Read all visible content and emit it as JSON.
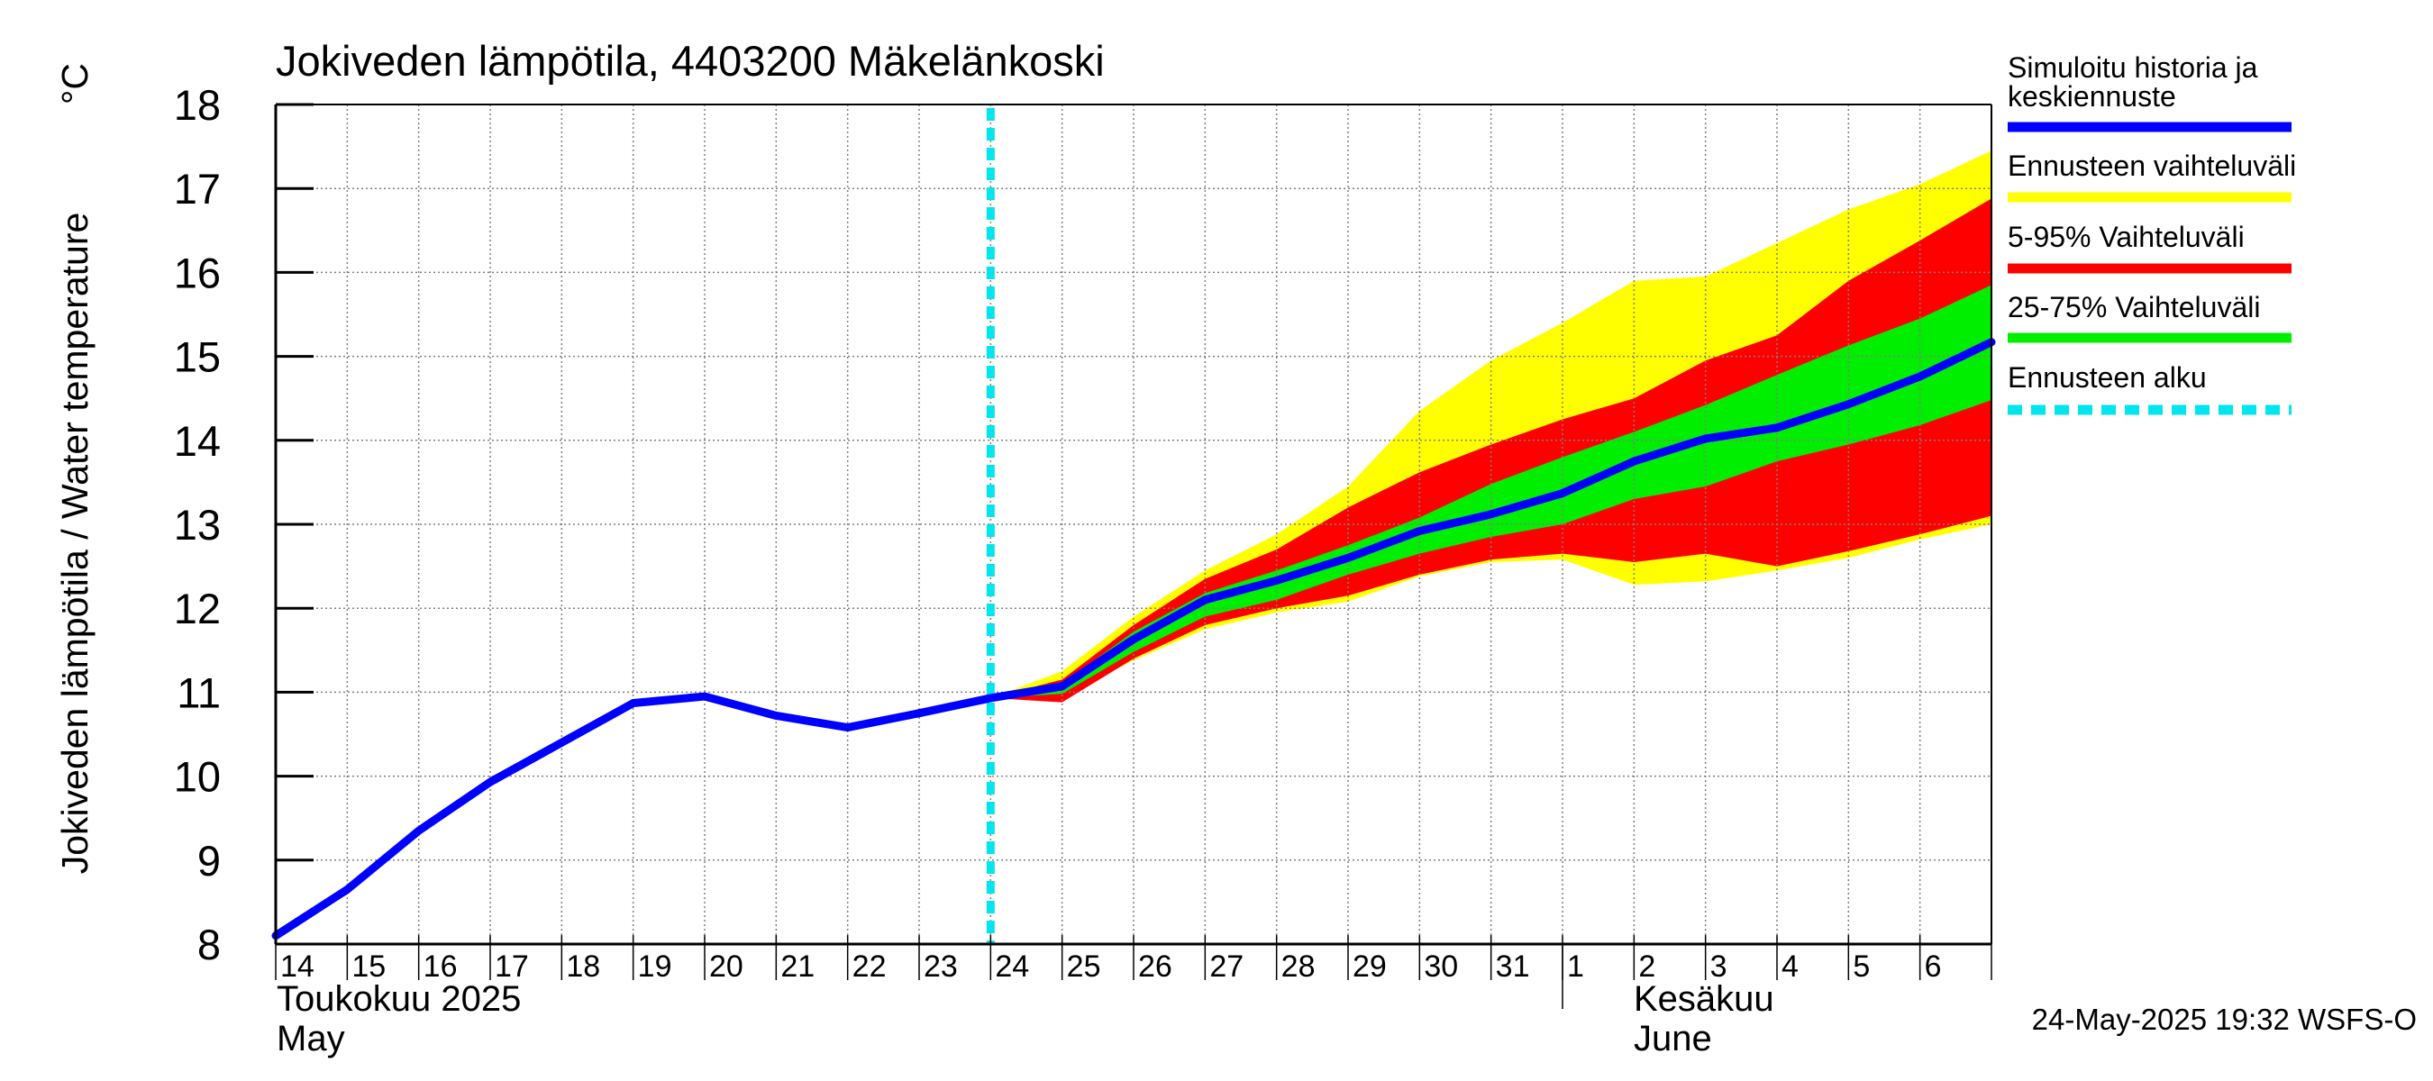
{
  "title": "Jokiveden lämpötila, 4403200 Mäkelänkoski",
  "ylabel": "Jokiveden lämpötila / Water temperature",
  "unit": "°C",
  "timestamp": "24-May-2025 19:32 WSFS-O",
  "month_labels": {
    "may_fi": "Toukokuu  2025",
    "may_en": "May",
    "june_fi": "Kesäkuu",
    "june_en": "June"
  },
  "legend": [
    {
      "label_lines": [
        "Simuloitu historia ja",
        "keskiennuste"
      ],
      "color": "#0000ff",
      "style": "solid"
    },
    {
      "label_lines": [
        "Ennusteen vaihteluväli"
      ],
      "color": "#ffff00",
      "style": "solid"
    },
    {
      "label_lines": [
        "5-95% Vaihteluväli"
      ],
      "color": "#ff0000",
      "style": "solid"
    },
    {
      "label_lines": [
        "25-75% Vaihteluväli"
      ],
      "color": "#00ee00",
      "style": "solid"
    },
    {
      "label_lines": [
        "Ennusteen alku"
      ],
      "color": "#00e5ee",
      "style": "dashed"
    }
  ],
  "chart_data": {
    "type": "area",
    "title": "Jokiveden lämpötila, 4403200 Mäkelänkoski",
    "ylabel": "Jokiveden lämpötila / Water temperature",
    "unit": "°C",
    "ylim": [
      8,
      18
    ],
    "yticks": [
      8,
      9,
      10,
      11,
      12,
      13,
      14,
      15,
      16,
      17,
      18
    ],
    "xlim": [
      0,
      24
    ],
    "x_tick_labels": [
      "14",
      "15",
      "16",
      "17",
      "18",
      "19",
      "20",
      "21",
      "22",
      "23",
      "24",
      "25",
      "26",
      "27",
      "28",
      "29",
      "30",
      "31",
      "1",
      "2",
      "3",
      "4",
      "5",
      "6"
    ],
    "grid": true,
    "forecast_start_x": 10.0,
    "simulated": {
      "x": [
        0,
        1,
        2,
        3,
        4,
        5,
        6,
        7,
        8,
        9,
        10,
        11,
        12,
        13,
        14,
        15,
        16,
        17,
        18,
        19,
        20,
        21,
        22,
        23,
        24
      ],
      "y": [
        8.1,
        8.65,
        9.35,
        9.93,
        10.4,
        10.87,
        10.95,
        10.72,
        10.58,
        10.75,
        10.93,
        11.07,
        11.63,
        12.1,
        12.33,
        12.6,
        12.92,
        13.12,
        13.37,
        13.75,
        14.02,
        14.15,
        14.43,
        14.76,
        15.17
      ]
    },
    "range_x": [
      10,
      11,
      12,
      13,
      14,
      15,
      16,
      17,
      18,
      19,
      20,
      21,
      22,
      23,
      24
    ],
    "range_min_max": {
      "low": [
        10.93,
        10.95,
        11.38,
        11.75,
        11.95,
        12.08,
        12.38,
        12.55,
        12.58,
        12.28,
        12.32,
        12.45,
        12.6,
        12.82,
        13.0
      ],
      "high": [
        10.93,
        11.25,
        11.9,
        12.45,
        12.88,
        13.45,
        14.35,
        14.95,
        15.4,
        15.9,
        15.95,
        16.35,
        16.75,
        17.05,
        17.45
      ]
    },
    "range_5_95": {
      "low": [
        10.93,
        10.88,
        11.4,
        11.8,
        12.0,
        12.15,
        12.4,
        12.58,
        12.65,
        12.55,
        12.65,
        12.5,
        12.68,
        12.88,
        13.1
      ],
      "high": [
        10.93,
        11.15,
        11.8,
        12.35,
        12.7,
        13.2,
        13.62,
        13.95,
        14.25,
        14.5,
        14.95,
        15.25,
        15.9,
        16.38,
        16.88
      ]
    },
    "range_25_75": {
      "low": [
        10.93,
        10.98,
        11.48,
        11.9,
        12.1,
        12.4,
        12.65,
        12.85,
        13.0,
        13.3,
        13.45,
        13.75,
        13.95,
        14.18,
        14.48
      ],
      "high": [
        10.93,
        11.1,
        11.72,
        12.18,
        12.45,
        12.75,
        13.08,
        13.48,
        13.8,
        14.1,
        14.42,
        14.78,
        15.13,
        15.45,
        15.85
      ]
    }
  }
}
